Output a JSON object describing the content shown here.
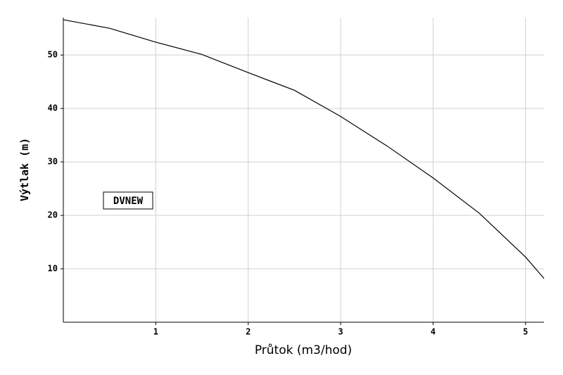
{
  "chart_data": {
    "type": "line",
    "x_label": "Průtok (m3/hod)",
    "y_label": "Výtlak (m)",
    "annotation": "DVNEW",
    "x": [
      0,
      0.5,
      1,
      1.5,
      2,
      2.5,
      3,
      3.5,
      4,
      4.5,
      5,
      5.2
    ],
    "series": [
      {
        "color": "#000000",
        "values": [
          56.6,
          55,
          52.4,
          50.1,
          46.7,
          43.4,
          38.5,
          33,
          27,
          20.4,
          12.2,
          8.2
        ]
      }
    ],
    "xlim": [
      0,
      5.2
    ],
    "ylim": [
      0,
      57
    ],
    "xticks": [
      1,
      2,
      3,
      4,
      5
    ],
    "yticks": [
      10,
      20,
      30,
      40,
      50
    ],
    "grid": true
  }
}
